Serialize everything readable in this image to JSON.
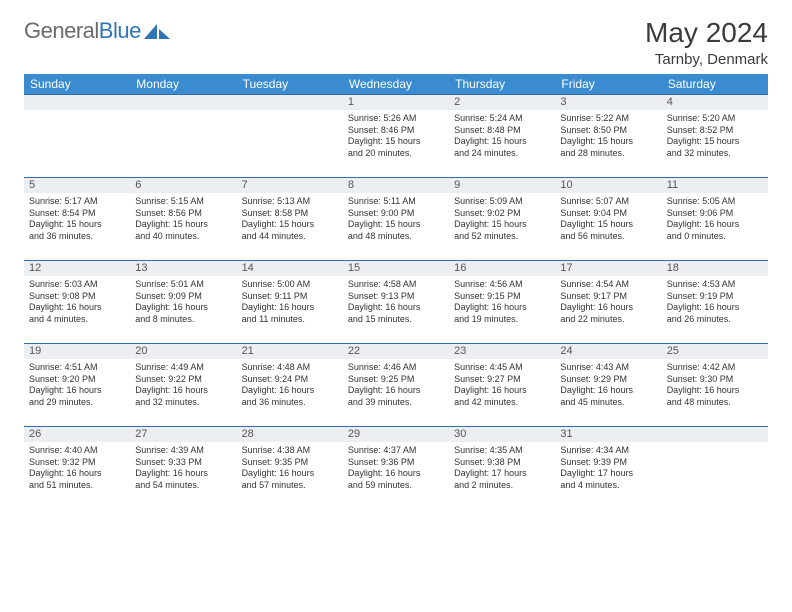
{
  "brand": {
    "part1": "General",
    "part2": "Blue"
  },
  "title": "May 2024",
  "location": "Tarnby, Denmark",
  "colors": {
    "header_bg": "#3a8bd0",
    "header_fg": "#ffffff",
    "row_border": "#2f6ea8",
    "daynum_bg": "#eceff1",
    "text": "#333333",
    "logo_gray": "#6b6b6b",
    "logo_blue": "#2f75b5"
  },
  "weekdays": [
    "Sunday",
    "Monday",
    "Tuesday",
    "Wednesday",
    "Thursday",
    "Friday",
    "Saturday"
  ],
  "weeks": [
    [
      null,
      null,
      null,
      {
        "n": "1",
        "rise": "5:26 AM",
        "set": "8:46 PM",
        "dlh": "15",
        "dlm": "20"
      },
      {
        "n": "2",
        "rise": "5:24 AM",
        "set": "8:48 PM",
        "dlh": "15",
        "dlm": "24"
      },
      {
        "n": "3",
        "rise": "5:22 AM",
        "set": "8:50 PM",
        "dlh": "15",
        "dlm": "28"
      },
      {
        "n": "4",
        "rise": "5:20 AM",
        "set": "8:52 PM",
        "dlh": "15",
        "dlm": "32"
      }
    ],
    [
      {
        "n": "5",
        "rise": "5:17 AM",
        "set": "8:54 PM",
        "dlh": "15",
        "dlm": "36"
      },
      {
        "n": "6",
        "rise": "5:15 AM",
        "set": "8:56 PM",
        "dlh": "15",
        "dlm": "40"
      },
      {
        "n": "7",
        "rise": "5:13 AM",
        "set": "8:58 PM",
        "dlh": "15",
        "dlm": "44"
      },
      {
        "n": "8",
        "rise": "5:11 AM",
        "set": "9:00 PM",
        "dlh": "15",
        "dlm": "48"
      },
      {
        "n": "9",
        "rise": "5:09 AM",
        "set": "9:02 PM",
        "dlh": "15",
        "dlm": "52"
      },
      {
        "n": "10",
        "rise": "5:07 AM",
        "set": "9:04 PM",
        "dlh": "15",
        "dlm": "56"
      },
      {
        "n": "11",
        "rise": "5:05 AM",
        "set": "9:06 PM",
        "dlh": "16",
        "dlm": "0"
      }
    ],
    [
      {
        "n": "12",
        "rise": "5:03 AM",
        "set": "9:08 PM",
        "dlh": "16",
        "dlm": "4"
      },
      {
        "n": "13",
        "rise": "5:01 AM",
        "set": "9:09 PM",
        "dlh": "16",
        "dlm": "8"
      },
      {
        "n": "14",
        "rise": "5:00 AM",
        "set": "9:11 PM",
        "dlh": "16",
        "dlm": "11"
      },
      {
        "n": "15",
        "rise": "4:58 AM",
        "set": "9:13 PM",
        "dlh": "16",
        "dlm": "15"
      },
      {
        "n": "16",
        "rise": "4:56 AM",
        "set": "9:15 PM",
        "dlh": "16",
        "dlm": "19"
      },
      {
        "n": "17",
        "rise": "4:54 AM",
        "set": "9:17 PM",
        "dlh": "16",
        "dlm": "22"
      },
      {
        "n": "18",
        "rise": "4:53 AM",
        "set": "9:19 PM",
        "dlh": "16",
        "dlm": "26"
      }
    ],
    [
      {
        "n": "19",
        "rise": "4:51 AM",
        "set": "9:20 PM",
        "dlh": "16",
        "dlm": "29"
      },
      {
        "n": "20",
        "rise": "4:49 AM",
        "set": "9:22 PM",
        "dlh": "16",
        "dlm": "32"
      },
      {
        "n": "21",
        "rise": "4:48 AM",
        "set": "9:24 PM",
        "dlh": "16",
        "dlm": "36"
      },
      {
        "n": "22",
        "rise": "4:46 AM",
        "set": "9:25 PM",
        "dlh": "16",
        "dlm": "39"
      },
      {
        "n": "23",
        "rise": "4:45 AM",
        "set": "9:27 PM",
        "dlh": "16",
        "dlm": "42"
      },
      {
        "n": "24",
        "rise": "4:43 AM",
        "set": "9:29 PM",
        "dlh": "16",
        "dlm": "45"
      },
      {
        "n": "25",
        "rise": "4:42 AM",
        "set": "9:30 PM",
        "dlh": "16",
        "dlm": "48"
      }
    ],
    [
      {
        "n": "26",
        "rise": "4:40 AM",
        "set": "9:32 PM",
        "dlh": "16",
        "dlm": "51"
      },
      {
        "n": "27",
        "rise": "4:39 AM",
        "set": "9:33 PM",
        "dlh": "16",
        "dlm": "54"
      },
      {
        "n": "28",
        "rise": "4:38 AM",
        "set": "9:35 PM",
        "dlh": "16",
        "dlm": "57"
      },
      {
        "n": "29",
        "rise": "4:37 AM",
        "set": "9:36 PM",
        "dlh": "16",
        "dlm": "59"
      },
      {
        "n": "30",
        "rise": "4:35 AM",
        "set": "9:38 PM",
        "dlh": "17",
        "dlm": "2"
      },
      {
        "n": "31",
        "rise": "4:34 AM",
        "set": "9:39 PM",
        "dlh": "17",
        "dlm": "4"
      },
      null
    ]
  ],
  "labels": {
    "sunrise": "Sunrise: ",
    "sunset": "Sunset: ",
    "daylight_pre": "Daylight: ",
    "hours": " hours",
    "and": "and ",
    "minutes": " minutes."
  }
}
